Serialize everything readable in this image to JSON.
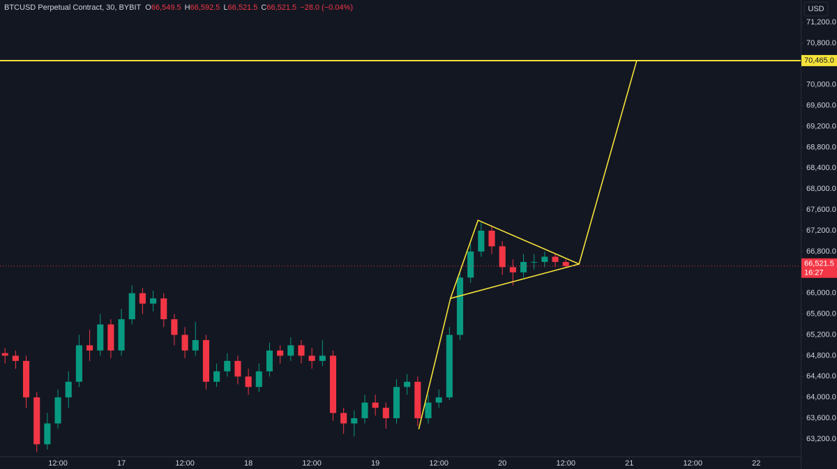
{
  "chart_data": {
    "type": "candlestick",
    "title": "BTCUSD Perpetual Contract, 30, BYBIT",
    "ohlc_legend": [
      {
        "key": "O",
        "text": "66,549.5"
      },
      {
        "key": "H",
        "text": "66,592.5"
      },
      {
        "key": "L",
        "text": "66,521.5"
      },
      {
        "key": "C",
        "text": "66,521.5"
      }
    ],
    "change_text": "−28.0 (−0.04%)",
    "currency": "USD",
    "up_color": "#089981",
    "down_color": "#f23645",
    "drawing_color": "#f5e23a",
    "xlim": [
      1.05,
      152.4
    ],
    "xticks": [
      {
        "value": 12,
        "label": "12:00"
      },
      {
        "value": 24,
        "label": "17"
      },
      {
        "value": 36,
        "label": "12:00"
      },
      {
        "value": 48,
        "label": "18"
      },
      {
        "value": 60,
        "label": "12:00"
      },
      {
        "value": 72,
        "label": "19"
      },
      {
        "value": 84,
        "label": "12:00"
      },
      {
        "value": 96,
        "label": "20"
      },
      {
        "value": 108,
        "label": "12:00"
      },
      {
        "value": 120,
        "label": "21"
      },
      {
        "value": 132,
        "label": "12:00"
      },
      {
        "value": 144,
        "label": "22"
      }
    ],
    "ylim": [
      62866,
      71628
    ],
    "yticks": [
      {
        "value": 71200,
        "label": "71,200.0"
      },
      {
        "value": 70800,
        "label": "70,800.0"
      },
      {
        "value": 70000,
        "label": "70,000.0"
      },
      {
        "value": 69600,
        "label": "69,600.0"
      },
      {
        "value": 69200,
        "label": "69,200.0"
      },
      {
        "value": 68800,
        "label": "68,800.0"
      },
      {
        "value": 68400,
        "label": "68,400.0"
      },
      {
        "value": 68000,
        "label": "68,000.0"
      },
      {
        "value": 67600,
        "label": "67,600.0"
      },
      {
        "value": 67200,
        "label": "67,200.0"
      },
      {
        "value": 66800,
        "label": "66,800.0"
      },
      {
        "value": 66000,
        "label": "66,000.0"
      },
      {
        "value": 65600,
        "label": "65,600.0"
      },
      {
        "value": 65200,
        "label": "65,200.0"
      },
      {
        "value": 64800,
        "label": "64,800.0"
      },
      {
        "value": 64400,
        "label": "64,400.0"
      },
      {
        "value": 64000,
        "label": "64,000.0"
      },
      {
        "value": 63600,
        "label": "63,600.0"
      },
      {
        "value": 63200,
        "label": "63,200.0"
      }
    ],
    "x": [
      2,
      4,
      6,
      8,
      10,
      12,
      14,
      16,
      18,
      20,
      22,
      24,
      26,
      28,
      30,
      32,
      34,
      36,
      38,
      40,
      42,
      44,
      46,
      48,
      50,
      52,
      54,
      56,
      58,
      60,
      62,
      64,
      66,
      68,
      70,
      72,
      74,
      76,
      78,
      80,
      82,
      84,
      86,
      88,
      90,
      92,
      94,
      96,
      98,
      100,
      102,
      104,
      106,
      108
    ],
    "open": [
      64850,
      64800,
      64700,
      64000,
      63100,
      63500,
      64000,
      64300,
      65000,
      64900,
      65400,
      64900,
      65500,
      66000,
      65800,
      65900,
      65500,
      65200,
      64900,
      65100,
      64300,
      64500,
      64700,
      64400,
      64200,
      64500,
      64900,
      64800,
      65000,
      64800,
      64700,
      64800,
      63700,
      63500,
      63600,
      63900,
      63800,
      63600,
      64200,
      64300,
      63600,
      63900,
      64000,
      65200,
      66300,
      66800,
      67200,
      66900,
      66500,
      66400,
      66600,
      66600,
      66700,
      66600
    ],
    "high": [
      64950,
      64900,
      64800,
      64100,
      63700,
      64150,
      64500,
      65200,
      65300,
      65600,
      65500,
      65700,
      66150,
      66100,
      66050,
      66000,
      65600,
      65350,
      65450,
      65200,
      64650,
      64850,
      64800,
      64550,
      64650,
      65050,
      65000,
      65150,
      65100,
      64950,
      65100,
      64900,
      63800,
      63750,
      64050,
      64050,
      63900,
      64350,
      64450,
      64400,
      64050,
      64150,
      65350,
      66400,
      66950,
      67350,
      67300,
      67000,
      66650,
      66750,
      66750,
      66800,
      66750,
      66650
    ],
    "low": [
      64650,
      64550,
      63800,
      62950,
      63000,
      63400,
      63800,
      64200,
      64700,
      64800,
      64750,
      64800,
      65400,
      65600,
      65650,
      65350,
      65000,
      64750,
      64800,
      64150,
      64200,
      64400,
      64250,
      64050,
      64100,
      64400,
      64650,
      64700,
      64650,
      64550,
      64600,
      63550,
      63300,
      63250,
      63500,
      63650,
      63400,
      63500,
      64050,
      63450,
      63500,
      63800,
      63950,
      65100,
      66200,
      66700,
      66750,
      66350,
      66150,
      66300,
      66450,
      66500,
      66500,
      66480
    ],
    "close": [
      64800,
      64700,
      64000,
      63100,
      63500,
      64000,
      64300,
      65000,
      64900,
      65400,
      64900,
      65500,
      66000,
      65800,
      65900,
      65500,
      65200,
      64900,
      65100,
      64300,
      64500,
      64700,
      64400,
      64200,
      64500,
      64900,
      64800,
      65000,
      64800,
      64700,
      64800,
      63700,
      63500,
      63600,
      63900,
      63800,
      63600,
      64200,
      64300,
      63600,
      63900,
      64000,
      65200,
      66300,
      66800,
      67200,
      66900,
      66500,
      66400,
      66600,
      66600,
      66700,
      66600,
      66521.5
    ],
    "hline": {
      "value": 70465,
      "label": "70,465.0"
    },
    "last_price": {
      "value": 66521.5,
      "label": "66,521.5"
    },
    "countdown": "16:27",
    "drawings": [
      {
        "points": [
          [
            80.2,
            63390
          ],
          [
            86.2,
            65900
          ],
          [
            91.4,
            67400
          ],
          [
            110.5,
            66560
          ],
          [
            121.4,
            70465
          ]
        ]
      },
      {
        "points": [
          [
            86.2,
            65900
          ],
          [
            110.5,
            66560
          ]
        ]
      }
    ]
  }
}
